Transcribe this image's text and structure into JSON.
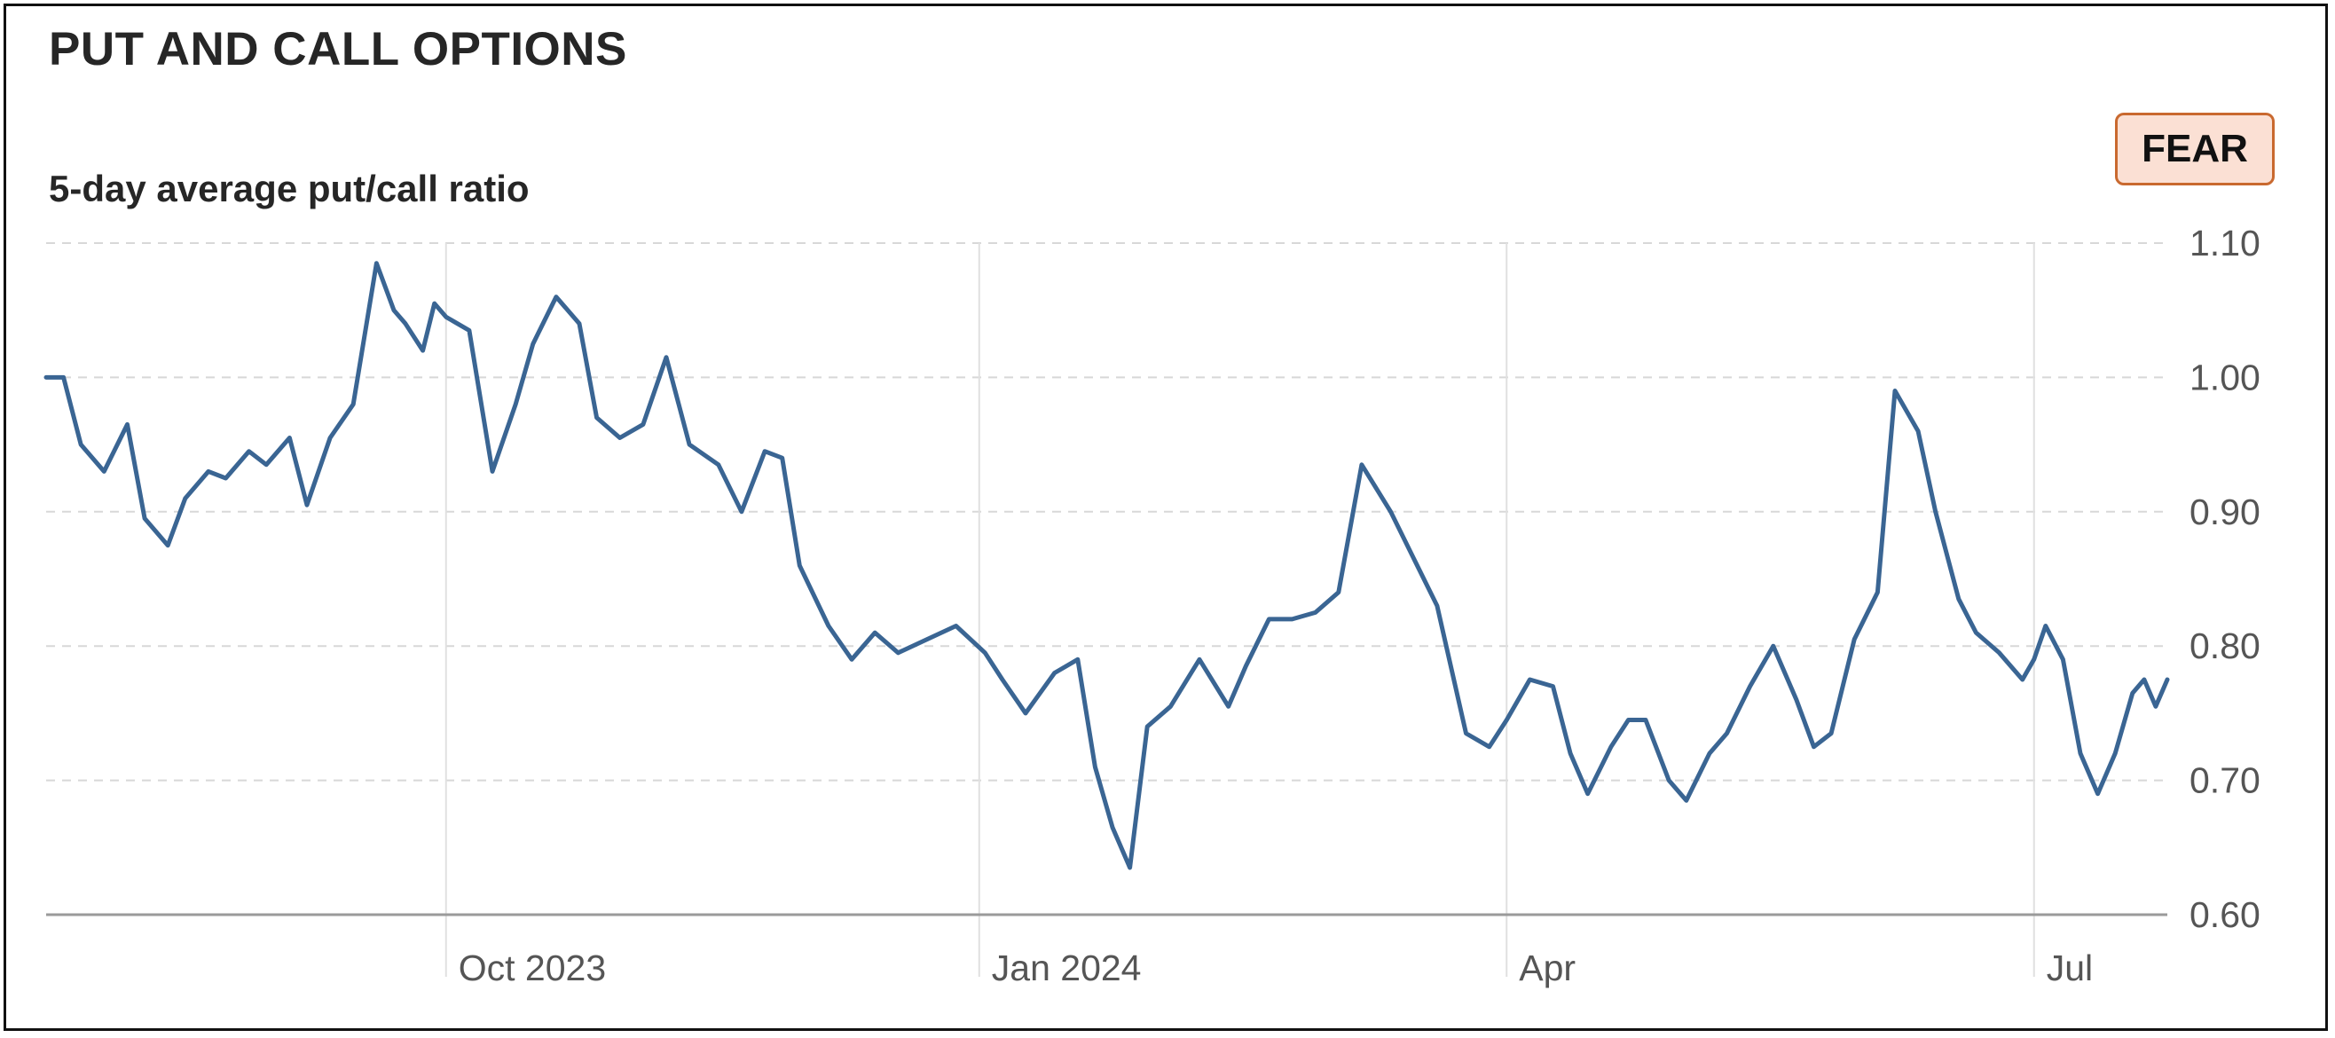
{
  "header": {
    "title": "PUT AND CALL OPTIONS",
    "subtitle": "5-day average put/call ratio",
    "badge_label": "FEAR",
    "badge_fill": "#fbe0d4",
    "badge_border": "#c9692f"
  },
  "chart_data": {
    "type": "line",
    "title": "PUT AND CALL OPTIONS",
    "subtitle": "5-day average put/call ratio",
    "xlabel": "",
    "ylabel": "",
    "x_ticks": [
      {
        "label": "Oct 2023",
        "date": "2023-10-01"
      },
      {
        "label": "Jan 2024",
        "date": "2024-01-01"
      },
      {
        "label": "Apr",
        "date": "2024-04-01"
      },
      {
        "label": "Jul",
        "date": "2024-07-01"
      }
    ],
    "y_ticks": [
      0.6,
      0.7,
      0.8,
      0.9,
      1.0,
      1.1
    ],
    "y_tick_labels": [
      "0.60",
      "0.70",
      "0.80",
      "0.90",
      "1.00",
      "1.10"
    ],
    "ylim": [
      0.6,
      1.1
    ],
    "xlim": [
      "2023-07-24",
      "2024-07-24"
    ],
    "grid": true,
    "line_color": "#3a6593",
    "series": [
      {
        "x": [
          "2023-07-24",
          "2023-07-27",
          "2023-07-30",
          "2023-08-03",
          "2023-08-07",
          "2023-08-10",
          "2023-08-14",
          "2023-08-17",
          "2023-08-21",
          "2023-08-24",
          "2023-08-28",
          "2023-08-31",
          "2023-09-04",
          "2023-09-07",
          "2023-09-11",
          "2023-09-15",
          "2023-09-19",
          "2023-09-22",
          "2023-09-24",
          "2023-09-27",
          "2023-09-29",
          "2023-10-01",
          "2023-10-05",
          "2023-10-09",
          "2023-10-13",
          "2023-10-16",
          "2023-10-20",
          "2023-10-24",
          "2023-10-27",
          "2023-10-31",
          "2023-11-04",
          "2023-11-08",
          "2023-11-12",
          "2023-11-17",
          "2023-11-21",
          "2023-11-25",
          "2023-11-28",
          "2023-12-01",
          "2023-12-06",
          "2023-12-10",
          "2023-12-14",
          "2023-12-18",
          "2023-12-23",
          "2023-12-28",
          "2024-01-02",
          "2024-01-05",
          "2024-01-09",
          "2024-01-14",
          "2024-01-18",
          "2024-01-21",
          "2024-01-24",
          "2024-01-27",
          "2024-01-30",
          "2024-02-03",
          "2024-02-08",
          "2024-02-13",
          "2024-02-16",
          "2024-02-20",
          "2024-02-24",
          "2024-02-28",
          "2024-03-03",
          "2024-03-07",
          "2024-03-12",
          "2024-03-16",
          "2024-03-20",
          "2024-03-25",
          "2024-03-29",
          "2024-04-01",
          "2024-04-05",
          "2024-04-09",
          "2024-04-12",
          "2024-04-15",
          "2024-04-19",
          "2024-04-22",
          "2024-04-25",
          "2024-04-29",
          "2024-05-02",
          "2024-05-06",
          "2024-05-09",
          "2024-05-13",
          "2024-05-17",
          "2024-05-21",
          "2024-05-24",
          "2024-05-27",
          "2024-05-31",
          "2024-06-04",
          "2024-06-07",
          "2024-06-11",
          "2024-06-14",
          "2024-06-18",
          "2024-06-21",
          "2024-06-25",
          "2024-06-29",
          "2024-07-01",
          "2024-07-03",
          "2024-07-06",
          "2024-07-09",
          "2024-07-12",
          "2024-07-15",
          "2024-07-18",
          "2024-07-20",
          "2024-07-22",
          "2024-07-24"
        ],
        "values": [
          1.0,
          1.0,
          0.95,
          0.93,
          0.965,
          0.895,
          0.875,
          0.91,
          0.93,
          0.925,
          0.945,
          0.935,
          0.955,
          0.905,
          0.955,
          0.98,
          1.085,
          1.05,
          1.04,
          1.02,
          1.055,
          1.045,
          1.035,
          0.93,
          0.98,
          1.025,
          1.06,
          1.04,
          0.97,
          0.955,
          0.965,
          1.015,
          0.95,
          0.935,
          0.9,
          0.945,
          0.94,
          0.86,
          0.815,
          0.79,
          0.81,
          0.795,
          0.805,
          0.815,
          0.795,
          0.775,
          0.75,
          0.78,
          0.79,
          0.71,
          0.665,
          0.635,
          0.74,
          0.755,
          0.79,
          0.755,
          0.785,
          0.82,
          0.82,
          0.825,
          0.84,
          0.935,
          0.9,
          0.865,
          0.83,
          0.735,
          0.725,
          0.745,
          0.775,
          0.77,
          0.72,
          0.69,
          0.725,
          0.745,
          0.745,
          0.7,
          0.685,
          0.72,
          0.735,
          0.77,
          0.8,
          0.76,
          0.725,
          0.735,
          0.805,
          0.84,
          0.99,
          0.96,
          0.9,
          0.835,
          0.81,
          0.795,
          0.775,
          0.79,
          0.815,
          0.79,
          0.72,
          0.69,
          0.72,
          0.765,
          0.775,
          0.755,
          0.775
        ]
      }
    ]
  }
}
